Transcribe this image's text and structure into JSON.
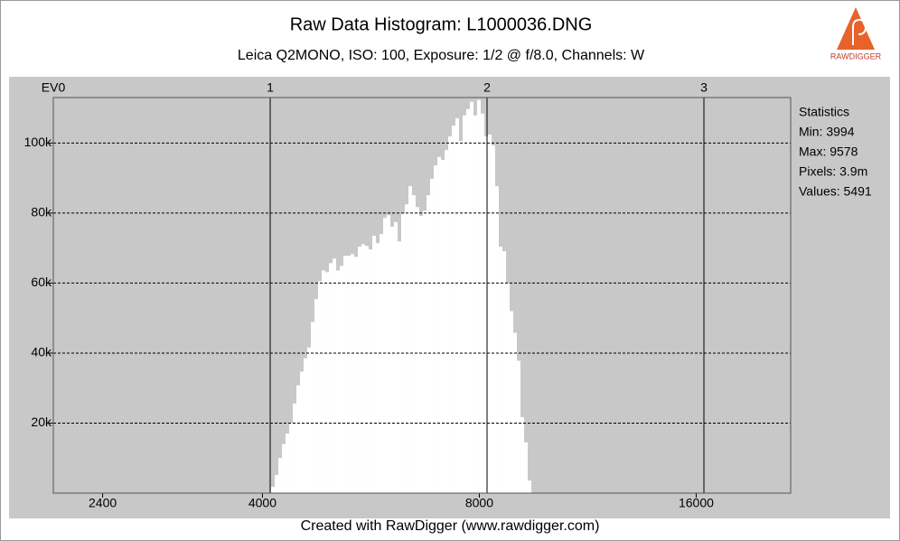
{
  "chart_data": {
    "type": "histogram",
    "title": "Raw Data Histogram: L1000036.DNG",
    "subtitle": "Leica Q2MONO, ISO: 100, Exposure: 1/2 @ f/8.0, Channels: W",
    "footer": "Created with RawDigger (www.rawdigger.com)",
    "logo": "RAWDIGGER",
    "color": "#ffffff",
    "grid": true,
    "xscale": "log",
    "xlim": [
      2050,
      21640
    ],
    "xticks": [
      2400,
      4000,
      8000,
      16000
    ],
    "x2ticks": [
      {
        "value": 2050,
        "label": "EV0"
      },
      {
        "value": 4100,
        "label": "1"
      },
      {
        "value": 8200,
        "label": "2"
      },
      {
        "value": 16400,
        "label": "3"
      }
    ],
    "ylim": [
      0,
      113000
    ],
    "yticks": [
      {
        "value": 20000,
        "label": "20k"
      },
      {
        "value": 40000,
        "label": "40k"
      },
      {
        "value": 60000,
        "label": "60k"
      },
      {
        "value": 80000,
        "label": "80k"
      },
      {
        "value": 100000,
        "label": "100k"
      }
    ],
    "bins": [
      4112,
      4160,
      4208,
      4257,
      4306,
      4357,
      4407,
      4458,
      4510,
      4562,
      4615,
      4669,
      4723,
      4778,
      4834,
      4890,
      4947,
      5004,
      5062,
      5121,
      5181,
      5241,
      5302,
      5363,
      5426,
      5489,
      5552,
      5617,
      5682,
      5748,
      5815,
      5883,
      5951,
      6020,
      6090,
      6161,
      6232,
      6305,
      6378,
      6452,
      6527,
      6603,
      6680,
      6757,
      6836,
      6915,
      6996,
      7077,
      7159,
      7242,
      7326,
      7411,
      7498,
      7585,
      7673,
      7762,
      7852,
      7943,
      8036,
      8129,
      8224,
      8320,
      8416,
      8514,
      8613,
      8713,
      8814,
      8917,
      9020,
      9125,
      9231,
      9338,
      9447
    ],
    "values": [
      1800,
      5200,
      10000,
      14000,
      17000,
      20000,
      25600,
      30800,
      34700,
      38500,
      41600,
      48900,
      55400,
      60500,
      63600,
      63100,
      65700,
      67000,
      63600,
      64900,
      67800,
      67800,
      68300,
      67500,
      70400,
      71100,
      70600,
      69600,
      73500,
      71400,
      74000,
      78600,
      79400,
      76100,
      77400,
      71900,
      79900,
      82500,
      87700,
      85100,
      81700,
      79200,
      80700,
      85100,
      89800,
      93600,
      96000,
      95200,
      98000,
      101900,
      105000,
      107100,
      100600,
      107900,
      109700,
      111800,
      107900,
      112300,
      108400,
      101900,
      102400,
      99300,
      87700,
      70400,
      69100,
      60000,
      52000,
      45800,
      37800,
      21700,
      14500,
      3600
    ],
    "statistics": [
      "Statistics",
      "Min: 3994",
      "Max: 9578",
      "Pixels: 3.9m",
      "Values: 5491"
    ]
  }
}
